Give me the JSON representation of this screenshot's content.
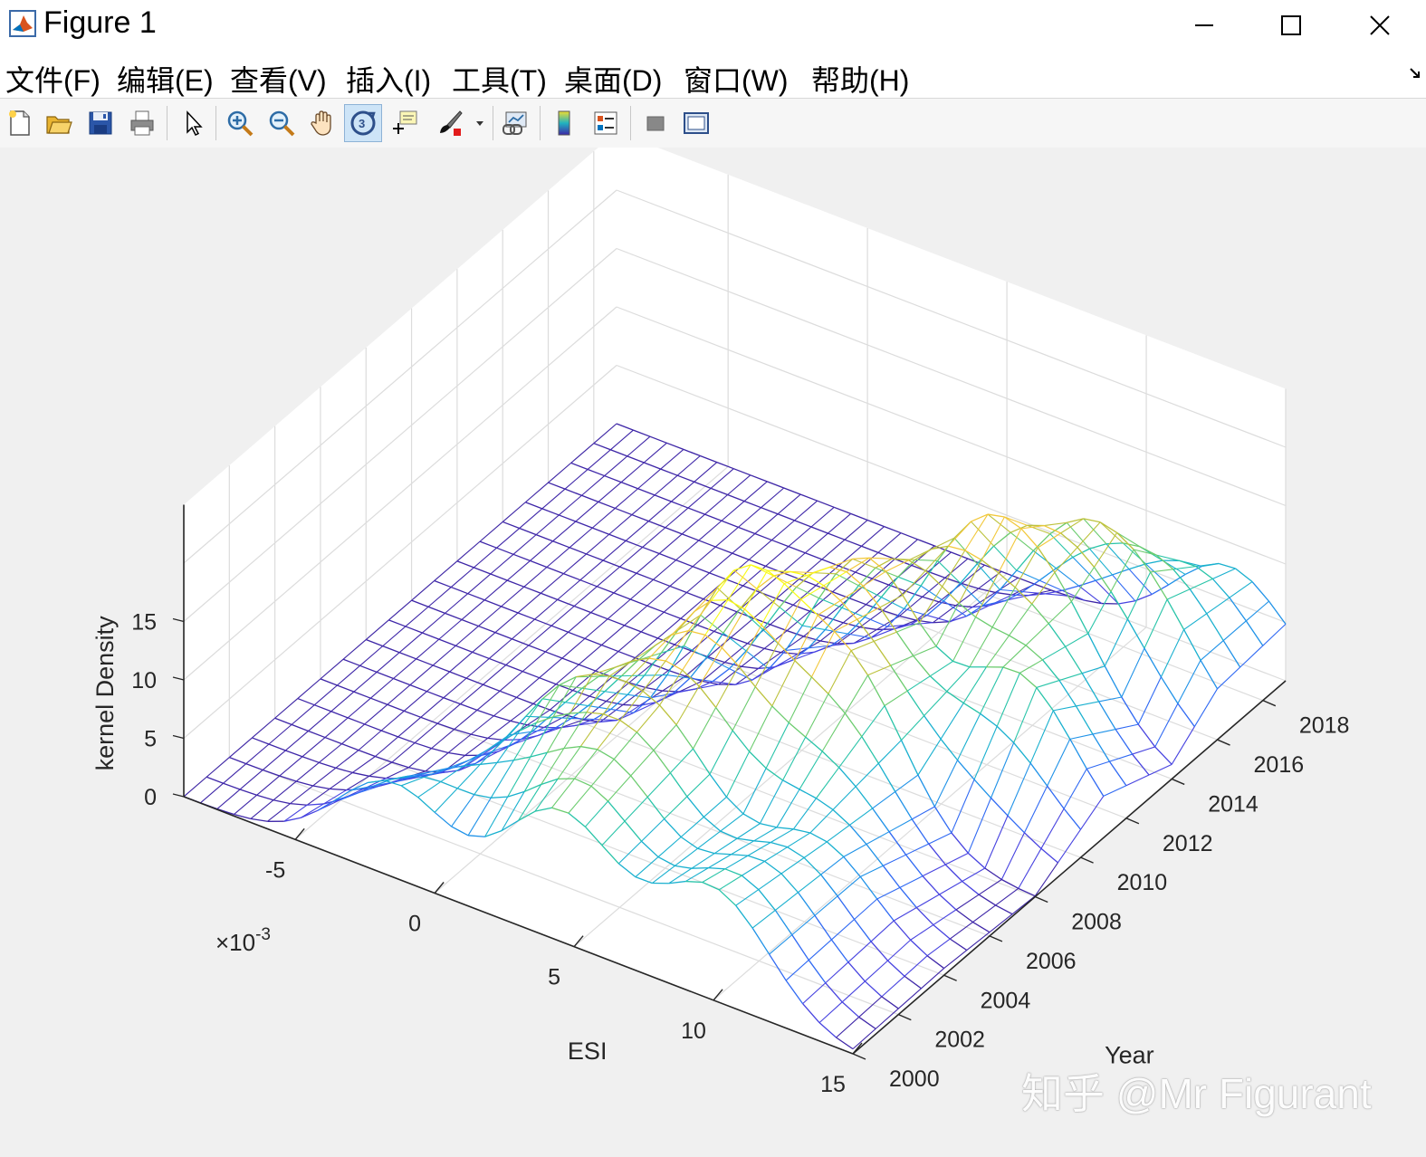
{
  "window": {
    "title": "Figure 1"
  },
  "menu": [
    {
      "label": "文件(F)"
    },
    {
      "label": "编辑(E)"
    },
    {
      "label": "查看(V)"
    },
    {
      "label": "插入(I)"
    },
    {
      "label": "工具(T)"
    },
    {
      "label": "桌面(D)"
    },
    {
      "label": "窗口(W)"
    },
    {
      "label": "帮助(H)"
    }
  ],
  "toolbar": {
    "buttons": [
      "new-figure-icon",
      "open-file-icon",
      "save-icon",
      "print-icon",
      "edit-plot-arrow-icon",
      "zoom-in-icon",
      "zoom-out-icon",
      "pan-hand-icon",
      "rotate-3d-icon",
      "data-cursor-icon",
      "brush-icon",
      "brush-dropdown-icon",
      "link-plot-icon",
      "colorbar-icon",
      "legend-icon",
      "hide-plot-tools-icon",
      "show-plot-tools-icon"
    ],
    "active": "rotate-3d-icon"
  },
  "chart_data": {
    "type": "surface-mesh",
    "title": "",
    "xlabel": "ESI",
    "ylabel": "Year",
    "zlabel": "kernel Density",
    "x_exponent_label": "×10",
    "x_exponent_power": "-3",
    "x_ticks": [
      "-5",
      "0",
      "5",
      "10",
      "15"
    ],
    "y_ticks": [
      "2000",
      "2002",
      "2004",
      "2006",
      "2008",
      "2010",
      "2012",
      "2014",
      "2016",
      "2018"
    ],
    "z_ticks": [
      "0",
      "5",
      "10",
      "15"
    ],
    "xlim": [
      -9,
      15
    ],
    "ylim": [
      2000,
      2019
    ],
    "zlim": [
      0,
      25
    ],
    "years": [
      2000,
      2001,
      2002,
      2003,
      2004,
      2005,
      2006,
      2007,
      2008,
      2009,
      2010,
      2011,
      2012,
      2013,
      2014,
      2015,
      2016,
      2017,
      2018,
      2019
    ],
    "density_peaks_by_year": [
      {
        "year": 2000,
        "peaks": [
          [
            -1.5,
            8
          ],
          [
            4.5,
            11
          ],
          [
            10,
            9.5
          ]
        ]
      },
      {
        "year": 2004,
        "peaks": [
          [
            1.5,
            10.5
          ],
          [
            5,
            11
          ],
          [
            10.5,
            7.5
          ]
        ]
      },
      {
        "year": 2008,
        "peaks": [
          [
            4.5,
            17
          ],
          [
            8.5,
            12.5
          ]
        ]
      },
      {
        "year": 2011,
        "peaks": [
          [
            6.5,
            16
          ],
          [
            12,
            11
          ]
        ]
      },
      {
        "year": 2014,
        "peaks": [
          [
            8,
            13
          ],
          [
            11,
            9
          ]
        ]
      },
      {
        "year": 2016,
        "peaks": [
          [
            9.5,
            10.5
          ],
          [
            12.5,
            9
          ]
        ]
      },
      {
        "year": 2019,
        "peaks": [
          [
            13,
            8
          ]
        ]
      }
    ],
    "grid": true,
    "colormap": "parula",
    "colors": {
      "low": "#3e26a8",
      "mid": "#20b2c0",
      "high": "#f0dd30"
    }
  },
  "watermark": {
    "text": "知乎 @Mr Figurant"
  }
}
